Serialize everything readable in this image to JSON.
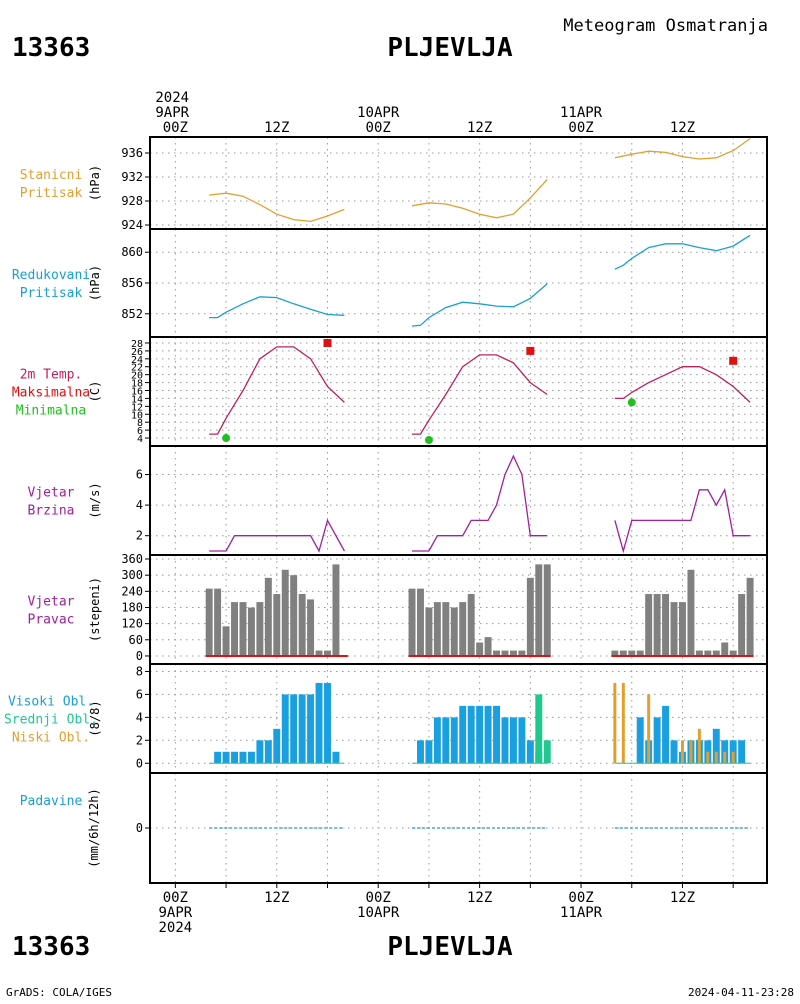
{
  "header": {
    "station_id": "13363",
    "station_name": "PLJEVLJA",
    "subtitle": "Meteogram Osmatranja"
  },
  "time_axis": {
    "top_labels": [
      {
        "t": 0,
        "lines": [
          "2024",
          "9APR",
          "00Z"
        ]
      },
      {
        "t": 12,
        "lines": [
          "12Z"
        ]
      },
      {
        "t": 24,
        "lines": [
          "10APR",
          "00Z"
        ]
      },
      {
        "t": 36,
        "lines": [
          "12Z"
        ]
      },
      {
        "t": 48,
        "lines": [
          "11APR",
          "00Z"
        ]
      },
      {
        "t": 60,
        "lines": [
          "12Z"
        ]
      }
    ],
    "bottom_labels": [
      {
        "t": 0,
        "lines": [
          "00Z",
          "9APR",
          "2024"
        ]
      },
      {
        "t": 12,
        "lines": [
          "12Z"
        ]
      },
      {
        "t": 24,
        "lines": [
          "00Z",
          "10APR"
        ]
      },
      {
        "t": 36,
        "lines": [
          "12Z"
        ]
      },
      {
        "t": 48,
        "lines": [
          "00Z",
          "11APR"
        ]
      },
      {
        "t": 60,
        "lines": [
          "12Z"
        ]
      }
    ],
    "range_hours": [
      -3,
      70
    ]
  },
  "footer": {
    "left": "GrADS: COLA/IGES",
    "right": "2024-04-11-23:28",
    "station_id": "13363",
    "station_name": "PLJEVLJA"
  },
  "colors": {
    "station_pressure": "#e0a030",
    "reduced_pressure": "#1aa0d0",
    "temperature": "#c0205a",
    "maximum": "#e01010",
    "minimum": "#20c020",
    "wind": "#a020a0",
    "wind_dir_bar": "#808080",
    "high_cloud": "#1aa0e0",
    "mid_cloud": "#20c890",
    "low_cloud": "#e0a030",
    "precip": "#1aa0c0",
    "label_station": "#e0a030",
    "label_reduced": "#1aa0d0",
    "label_temp": "#c0205a",
    "label_max": "#e01010",
    "label_min": "#20c020",
    "label_wind": "#a020a0",
    "label_high": "#1aa0d0",
    "label_mid": "#20c890",
    "label_low": "#e0a030",
    "label_precip": "#1aa0d0"
  },
  "chart_data": [
    {
      "type": "line",
      "id": "station_pressure",
      "labels": [
        "Stanicni",
        "Pritisak"
      ],
      "ylabel": "(hPa)",
      "ylim": [
        924,
        938
      ],
      "yticks": [
        924,
        928,
        932,
        936
      ],
      "series": [
        {
          "segments": [
            {
              "x": [
                4,
                6,
                8,
                10,
                12,
                14,
                16,
                18,
                20
              ],
              "y": [
                929,
                929.3,
                928.8,
                927.4,
                925.8,
                924.9,
                924.6,
                925.5,
                926.6
              ]
            },
            {
              "x": [
                28,
                30,
                32,
                34,
                36,
                38,
                40,
                42,
                44
              ],
              "y": [
                927.2,
                927.7,
                927.5,
                926.8,
                925.8,
                925.2,
                925.8,
                928.5,
                931.6
              ]
            },
            {
              "x": [
                52,
                54,
                56,
                58,
                60,
                62,
                64,
                66,
                68
              ],
              "y": [
                935.2,
                935.8,
                936.3,
                936.1,
                935.4,
                935,
                935.2,
                936.4,
                938.4
              ]
            }
          ]
        }
      ]
    },
    {
      "type": "line",
      "id": "reduced_pressure",
      "labels": [
        "Redukovani",
        "Pritisak"
      ],
      "ylabel": "(hPa)",
      "ylim": [
        849.5,
        862.5
      ],
      "yticks": [
        852,
        856,
        860
      ],
      "series": [
        {
          "segments": [
            {
              "x": [
                4,
                5,
                6,
                8,
                10,
                12,
                14,
                16,
                18,
                20
              ],
              "y": [
                851.5,
                851.5,
                852.2,
                853.3,
                854.2,
                854.1,
                853.3,
                852.6,
                851.9,
                851.8
              ]
            },
            {
              "x": [
                28,
                29,
                30,
                32,
                34,
                36,
                38,
                40,
                42,
                44
              ],
              "y": [
                850.4,
                850.5,
                851.5,
                852.8,
                853.5,
                853.3,
                853,
                852.9,
                854,
                855.9
              ]
            },
            {
              "x": [
                52,
                53,
                54,
                56,
                58,
                60,
                62,
                64,
                66,
                68
              ],
              "y": [
                857.8,
                858.3,
                859.2,
                860.6,
                861.1,
                861.1,
                860.6,
                860.2,
                860.8,
                862.2
              ]
            }
          ]
        }
      ]
    },
    {
      "type": "line",
      "id": "temperature",
      "labels": [
        "2m Temp.",
        "Maksimalna",
        "Minimalna"
      ],
      "ylabel": "(C)",
      "ylim": [
        3,
        28.5
      ],
      "yticks": [
        4,
        6,
        8,
        10,
        12,
        14,
        16,
        18,
        20,
        22,
        24,
        26,
        28
      ],
      "series": [
        {
          "name": "2m Temp.",
          "segments": [
            {
              "x": [
                4,
                5,
                6,
                8,
                10,
                12,
                14,
                16,
                18,
                20
              ],
              "y": [
                5,
                5,
                9,
                16,
                24,
                27,
                27,
                24,
                17,
                13
              ]
            },
            {
              "x": [
                28,
                29,
                30,
                32,
                34,
                36,
                38,
                40,
                42,
                44
              ],
              "y": [
                5,
                5,
                8.5,
                15,
                22,
                25,
                25,
                23,
                18,
                15
              ]
            },
            {
              "x": [
                52,
                53,
                54,
                56,
                58,
                60,
                62,
                64,
                66,
                68
              ],
              "y": [
                14,
                14,
                15.5,
                18,
                20,
                22,
                22,
                20,
                17,
                13
              ]
            }
          ]
        }
      ],
      "points": [
        {
          "name": "Maksimalna",
          "shape": "square",
          "values": [
            {
              "x": 18,
              "y": 28
            },
            {
              "x": 42,
              "y": 26
            },
            {
              "x": 66,
              "y": 23.5
            }
          ]
        },
        {
          "name": "Minimalna",
          "shape": "circle",
          "values": [
            {
              "x": 6,
              "y": 4
            },
            {
              "x": 30,
              "y": 3.5
            },
            {
              "x": 54,
              "y": 13
            }
          ]
        }
      ]
    },
    {
      "type": "line",
      "id": "wind_speed",
      "labels": [
        "Vjetar",
        "Brzina"
      ],
      "ylabel": "(m/s)",
      "ylim": [
        1,
        7.6
      ],
      "yticks": [
        2,
        4,
        6
      ],
      "series": [
        {
          "segments": [
            {
              "x": [
                4,
                6,
                7,
                10,
                12,
                14,
                16,
                17,
                18,
                20
              ],
              "y": [
                1,
                1,
                2,
                2,
                2,
                2,
                2,
                1,
                3,
                1
              ]
            },
            {
              "x": [
                28,
                30,
                31,
                34,
                35,
                37,
                38,
                39,
                40,
                41,
                42,
                44
              ],
              "y": [
                1,
                1,
                2,
                2,
                3,
                3,
                4,
                6,
                7.2,
                6,
                2,
                2
              ]
            },
            {
              "x": [
                52,
                53,
                54,
                58,
                60,
                61,
                62,
                63,
                64,
                65,
                66,
                68
              ],
              "y": [
                3,
                1,
                3,
                3,
                3,
                3,
                5,
                5,
                4,
                5,
                2,
                2
              ]
            }
          ]
        }
      ]
    },
    {
      "type": "bar",
      "id": "wind_direction",
      "labels": [
        "Vjetar",
        "Pravac"
      ],
      "ylabel": "(stepeni)",
      "ylim": [
        -15,
        360
      ],
      "yticks": [
        0,
        60,
        120,
        180,
        240,
        300,
        360
      ],
      "bar_width_hours": 1,
      "series": [
        {
          "x": [
            4,
            5,
            6,
            7,
            8,
            9,
            10,
            11,
            12,
            13,
            14,
            15,
            16,
            17,
            18,
            19,
            20
          ],
          "values": [
            250,
            250,
            110,
            200,
            200,
            180,
            200,
            290,
            230,
            320,
            300,
            230,
            210,
            20,
            20,
            340,
            0
          ]
        },
        {
          "x": [
            28,
            29,
            30,
            31,
            32,
            33,
            34,
            35,
            36,
            37,
            38,
            39,
            40,
            41,
            42,
            43,
            44
          ],
          "values": [
            250,
            250,
            180,
            200,
            200,
            180,
            200,
            230,
            50,
            70,
            20,
            20,
            20,
            20,
            290,
            340,
            340
          ]
        },
        {
          "x": [
            52,
            53,
            54,
            55,
            56,
            57,
            58,
            59,
            60,
            61,
            62,
            63,
            64,
            65,
            66,
            67,
            68
          ],
          "values": [
            20,
            20,
            20,
            20,
            230,
            230,
            230,
            200,
            200,
            320,
            20,
            20,
            20,
            50,
            20,
            230,
            290
          ]
        }
      ]
    },
    {
      "type": "bar",
      "id": "clouds",
      "labels": [
        "Visoki Obl.",
        "Srednji Obl.",
        "Niski Obl."
      ],
      "ylabel": "(8/8)",
      "ylim": [
        -0.5,
        8.3
      ],
      "yticks": [
        0,
        2,
        4,
        6,
        8
      ],
      "series": [
        {
          "name": "Visoki Obl.",
          "x": [
            5,
            6,
            7,
            8,
            9,
            10,
            11,
            12,
            13,
            14,
            15,
            16,
            17,
            18,
            19,
            29,
            30,
            31,
            32,
            33,
            34,
            35,
            36,
            37,
            38,
            39,
            40,
            41,
            42,
            43,
            55,
            56,
            57,
            58,
            59,
            60,
            61,
            62,
            63,
            64,
            65,
            66,
            67
          ],
          "values": [
            1,
            1,
            1,
            1,
            1,
            2,
            2,
            3,
            6,
            6,
            6,
            6,
            7,
            7,
            1,
            2,
            2,
            4,
            4,
            4,
            5,
            5,
            5,
            5,
            5,
            4,
            4,
            4,
            2,
            1,
            4,
            2,
            4,
            5,
            2,
            1,
            2,
            2,
            2,
            3,
            2,
            2,
            2
          ]
        },
        {
          "name": "Srednji Obl.",
          "x": [
            43,
            44
          ],
          "values": [
            6,
            2
          ]
        },
        {
          "name": "Niski Obl.",
          "x": [
            52,
            53,
            56,
            60,
            61,
            62,
            63,
            64,
            65,
            66
          ],
          "values": [
            7,
            7,
            6,
            2,
            2,
            3,
            1,
            1,
            1,
            1
          ]
        }
      ]
    },
    {
      "type": "line",
      "id": "precipitation",
      "labels": [
        "Padavine"
      ],
      "ylabel": "(mm/6h/12h)",
      "ylim": [
        -3,
        3
      ],
      "yticks": [
        0
      ],
      "series": [
        {
          "segments": [
            {
              "x": [
                4,
                20
              ],
              "y": [
                0,
                0
              ]
            },
            {
              "x": [
                28,
                44
              ],
              "y": [
                0,
                0
              ]
            },
            {
              "x": [
                52,
                68
              ],
              "y": [
                0,
                0
              ]
            }
          ]
        }
      ]
    }
  ]
}
